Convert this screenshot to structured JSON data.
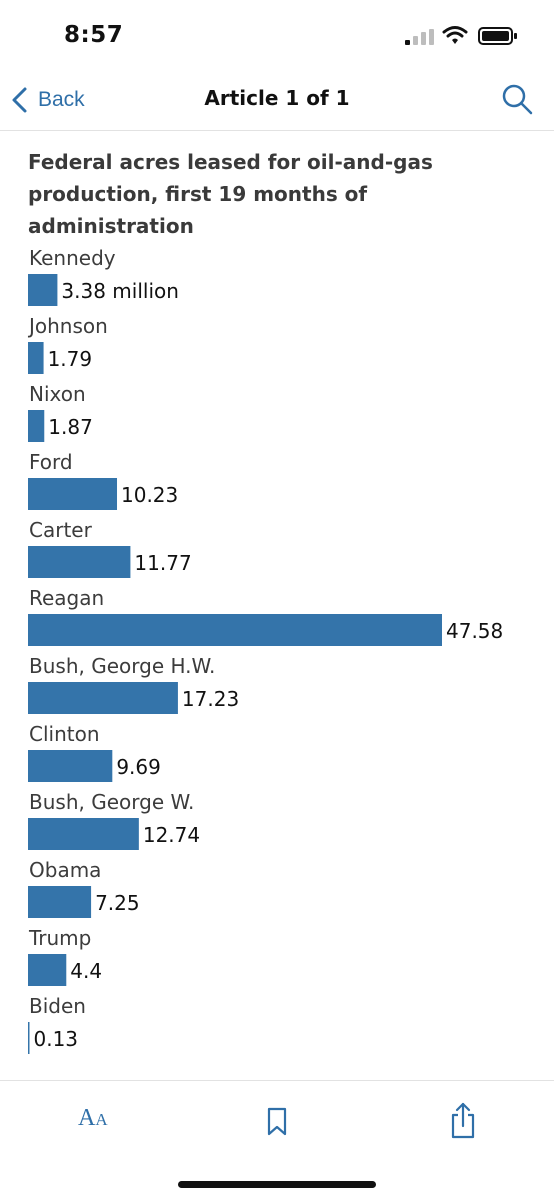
{
  "status_bar": {
    "time": "8:57"
  },
  "nav": {
    "back_label": "Back",
    "title": "Article 1 of 1"
  },
  "colors": {
    "accent": "#2f6fa8",
    "bar": "#3474aa"
  },
  "icons": {
    "back": "chevron-left-icon",
    "search": "search-icon",
    "text_size": "text-size-icon",
    "bookmark": "bookmark-icon",
    "share": "share-icon"
  },
  "toolbar": {
    "text_size_big": "A",
    "text_size_small": "A"
  },
  "chart_data": {
    "type": "bar",
    "orientation": "horizontal",
    "title": "Federal acres leased for oil-and-gas production, first 19 months of administration",
    "unit": "million",
    "categories": [
      "Kennedy",
      "Johnson",
      "Nixon",
      "Ford",
      "Carter",
      "Reagan",
      "Bush, George H.W.",
      "Clinton",
      "Bush, George W.",
      "Obama",
      "Trump",
      "Biden"
    ],
    "values": [
      3.38,
      1.79,
      1.87,
      10.23,
      11.77,
      47.58,
      17.23,
      9.69,
      12.74,
      7.25,
      4.4,
      0.13
    ],
    "value_labels": [
      "3.38 million",
      "1.79",
      "1.87",
      "10.23",
      "11.77",
      "47.58",
      "17.23",
      "9.69",
      "12.74",
      "7.25",
      "4.4",
      "0.13"
    ],
    "xlim": [
      0,
      47.58
    ],
    "grid": false,
    "legend": "none"
  }
}
